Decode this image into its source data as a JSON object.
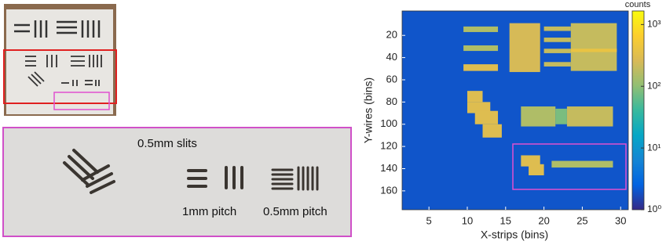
{
  "photo": {
    "labels": [
      "0.5mm slits",
      "1mm pitch",
      "0.5mm pitch"
    ]
  },
  "chart_data": {
    "type": "heatmap",
    "x_label": "X-strips (bins)",
    "y_label": "Y-wires (bins)",
    "colorbar_label": "counts",
    "xlim": [
      1.5,
      31
    ],
    "xticks": [
      5,
      10,
      15,
      20,
      25,
      30
    ],
    "ylim": [
      -2,
      177
    ],
    "y_inverted": true,
    "yticks": [
      20,
      40,
      60,
      80,
      100,
      120,
      140,
      160
    ],
    "clim": [
      1,
      1660
    ],
    "log_color": true,
    "cticks": [
      {
        "value": 1,
        "label": "10⁰"
      },
      {
        "value": 10,
        "label": "10¹"
      },
      {
        "value": 100,
        "label": "10²"
      },
      {
        "value": 1000,
        "label": "10³"
      }
    ],
    "background": 2,
    "cells": [
      {
        "x": [
          9.5,
          14
        ],
        "y": [
          12,
          17
        ],
        "value": 150
      },
      {
        "x": [
          9.5,
          14
        ],
        "y": [
          29,
          34
        ],
        "value": 150
      },
      {
        "x": [
          9.5,
          14
        ],
        "y": [
          46,
          52
        ],
        "value": 300
      },
      {
        "x": [
          15.5,
          19.5
        ],
        "y": [
          9,
          53
        ],
        "value": 250
      },
      {
        "x": [
          20,
          23.5
        ],
        "y": [
          12,
          16
        ],
        "value": 200
      },
      {
        "x": [
          20,
          23.5
        ],
        "y": [
          22,
          26
        ],
        "value": 200
      },
      {
        "x": [
          20,
          23.5
        ],
        "y": [
          32,
          36
        ],
        "value": 200
      },
      {
        "x": [
          20,
          23.5
        ],
        "y": [
          44,
          48
        ],
        "value": 200
      },
      {
        "x": [
          23.5,
          29.5
        ],
        "y": [
          9,
          52
        ],
        "value": 200
      },
      {
        "x": [
          23.5,
          29.5
        ],
        "y": [
          32,
          35
        ],
        "value": 400
      },
      {
        "x": [
          10,
          12
        ],
        "y": [
          70,
          80
        ],
        "value": 300
      },
      {
        "x": [
          10,
          13
        ],
        "y": [
          80,
          90
        ],
        "value": 300
      },
      {
        "x": [
          11,
          14
        ],
        "y": [
          88,
          100
        ],
        "value": 300
      },
      {
        "x": [
          12,
          14.5
        ],
        "y": [
          100,
          112
        ],
        "value": 300
      },
      {
        "x": [
          17,
          21.5
        ],
        "y": [
          84,
          102
        ],
        "value": 150
      },
      {
        "x": [
          21.5,
          23
        ],
        "y": [
          86,
          100
        ],
        "value": 80
      },
      {
        "x": [
          23,
          29
        ],
        "y": [
          84,
          102
        ],
        "value": 200
      },
      {
        "x": [
          17,
          19.5
        ],
        "y": [
          128,
          138
        ],
        "value": 300
      },
      {
        "x": [
          18,
          20
        ],
        "y": [
          136,
          146
        ],
        "value": 300
      },
      {
        "x": [
          21,
          29
        ],
        "y": [
          133,
          139
        ],
        "value": 150
      }
    ]
  }
}
